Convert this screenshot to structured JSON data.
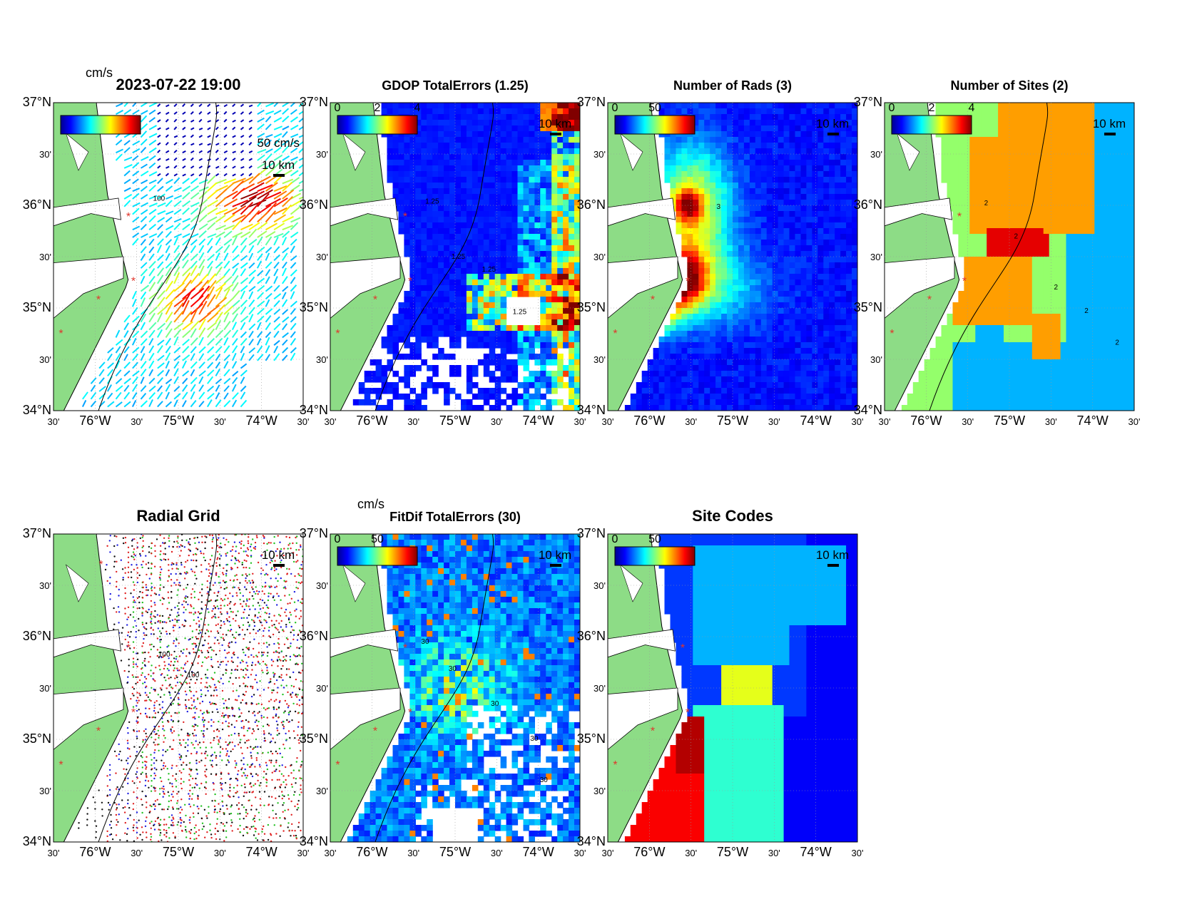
{
  "colors": {
    "land": "#8ddc86",
    "site_marker": "#e0352b",
    "coastline": "#000000"
  },
  "lat_ticks": [
    "37°N",
    "30'",
    "36°N",
    "30'",
    "35°N",
    "30'",
    "34°N"
  ],
  "lon_ticks": [
    "30'",
    "76°W",
    "30'",
    "75°W",
    "30'",
    "74°W",
    "30'"
  ],
  "scale_bar_label": "10 km",
  "panels": [
    {
      "id": "currents",
      "title": "2023-07-22 19:00",
      "units_label": "cm/s",
      "colorbar": {
        "show": true,
        "tick_labels": []
      },
      "vector_scale_label": "50 cm/s",
      "contour_labels": [
        "100"
      ]
    },
    {
      "id": "gdop",
      "title": "GDOP TotalErrors (1.25)",
      "units_label": "",
      "colorbar": {
        "show": true,
        "tick_labels": [
          "0",
          "2",
          "4"
        ]
      },
      "contour_labels": [
        "1.25",
        "1.25",
        "1.25",
        "1.25"
      ]
    },
    {
      "id": "nrads",
      "title": "Number of Rads (3)",
      "units_label": "",
      "colorbar": {
        "show": true,
        "tick_labels": [
          "0",
          "50"
        ]
      },
      "contour_labels": [
        "3"
      ]
    },
    {
      "id": "nsites",
      "title": "Number of Sites (2)",
      "units_label": "",
      "colorbar": {
        "show": true,
        "tick_labels": [
          "0",
          "2",
          "4"
        ]
      },
      "contour_labels": [
        "2",
        "2",
        "2",
        "2",
        "2"
      ]
    },
    {
      "id": "radgrid",
      "title": "Radial Grid",
      "units_label": "",
      "colorbar": {
        "show": false,
        "tick_labels": []
      },
      "contour_labels": [
        "100",
        "100"
      ]
    },
    {
      "id": "fitdif",
      "title": "FitDif TotalErrors (30)",
      "units_label": "cm/s",
      "colorbar": {
        "show": true,
        "tick_labels": [
          "0",
          "50"
        ]
      },
      "contour_labels": [
        "30",
        "30",
        "30",
        "30",
        "30",
        "30"
      ]
    },
    {
      "id": "sitecodes",
      "title": "Site Codes",
      "units_label": "",
      "colorbar": {
        "show": true,
        "tick_labels": [
          "0",
          "50"
        ]
      },
      "contour_labels": []
    }
  ]
}
